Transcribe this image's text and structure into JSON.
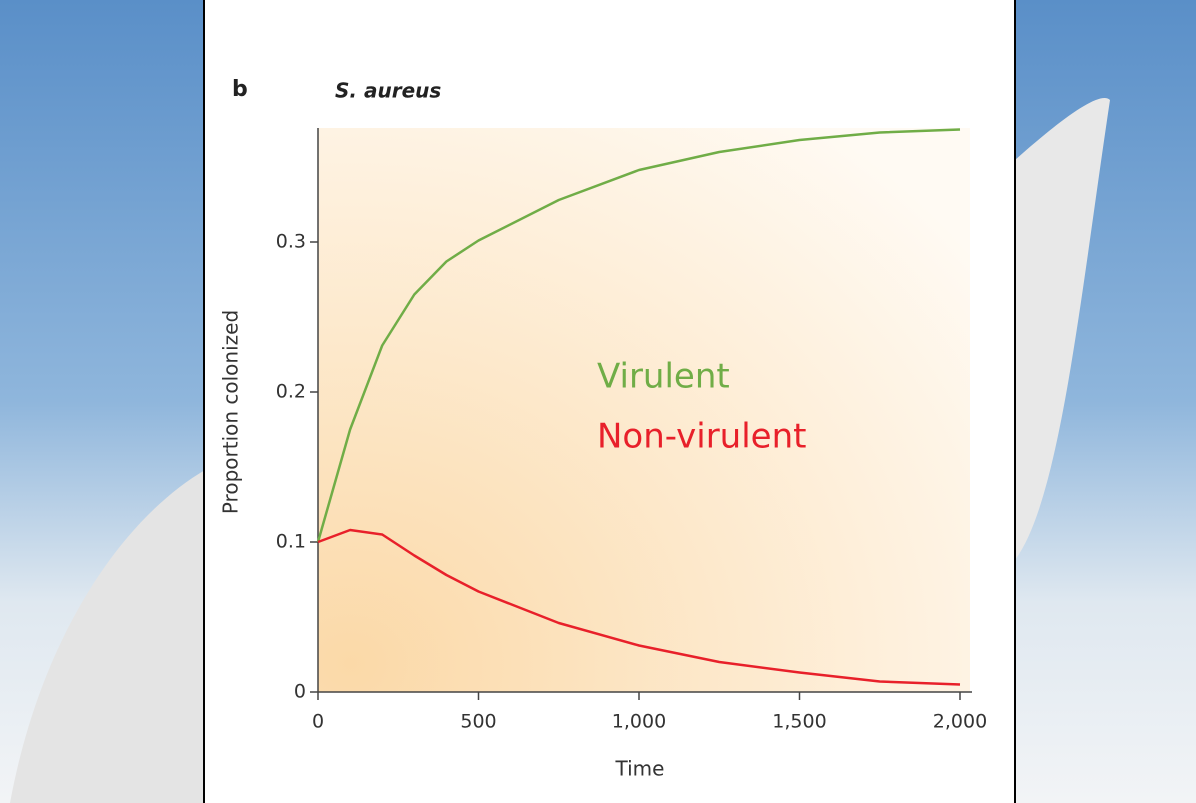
{
  "chart_data": {
    "type": "line",
    "panel_label": "b",
    "title": "S. aureus",
    "x_label": "Time",
    "y_label": "Proportion colonized",
    "x": [
      0,
      100,
      200,
      300,
      400,
      500,
      750,
      1000,
      1250,
      1500,
      1750,
      2000
    ],
    "series": [
      {
        "name": "Virulent",
        "color": "#70ad47",
        "values": [
          0.1,
          0.175,
          0.231,
          0.265,
          0.287,
          0.301,
          0.328,
          0.348,
          0.36,
          0.368,
          0.373,
          0.375
        ]
      },
      {
        "name": "Non-virulent",
        "color": "#e8202a",
        "values": [
          0.1,
          0.108,
          0.105,
          0.091,
          0.078,
          0.067,
          0.046,
          0.031,
          0.02,
          0.013,
          0.007,
          0.005
        ]
      }
    ],
    "xlim": [
      0,
      2000
    ],
    "ylim": [
      0,
      0.38
    ],
    "xticks": [
      0,
      500,
      {
        "value": 1000,
        "label": "1,000"
      },
      {
        "value": 1500,
        "label": "1,500"
      },
      {
        "value": 2000,
        "label": "2,000"
      }
    ],
    "yticks": [
      0,
      0.1,
      0.2,
      0.3
    ]
  }
}
